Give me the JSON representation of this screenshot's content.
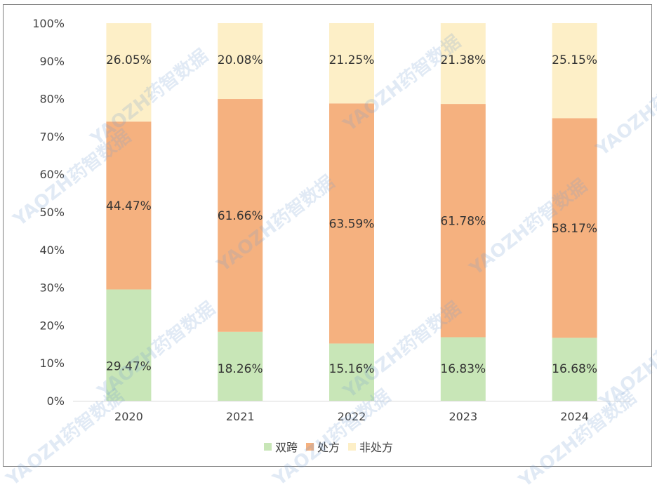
{
  "chart_data": {
    "type": "bar",
    "stacked": true,
    "categories": [
      "2020",
      "2021",
      "2022",
      "2023",
      "2024"
    ],
    "series": [
      {
        "name": "双跨",
        "color": "#c8e6b7",
        "values": [
          29.47,
          18.26,
          15.16,
          16.83,
          16.68
        ],
        "labels": [
          "29.47%",
          "18.26%",
          "15.16%",
          "16.83%",
          "16.68%"
        ]
      },
      {
        "name": "处方",
        "color": "#f5b17f",
        "values": [
          44.47,
          61.66,
          63.59,
          61.78,
          58.17
        ],
        "labels": [
          "44.47%",
          "61.66%",
          "63.59%",
          "61.78%",
          "58.17%"
        ]
      },
      {
        "name": "非处方",
        "color": "#fdefc7",
        "values": [
          26.05,
          20.08,
          21.25,
          21.38,
          25.15
        ],
        "labels": [
          "26.05%",
          "20.08%",
          "21.25%",
          "21.38%",
          "25.15%"
        ]
      }
    ],
    "y_ticks": [
      "0%",
      "10%",
      "20%",
      "30%",
      "40%",
      "50%",
      "60%",
      "70%",
      "80%",
      "90%",
      "100%"
    ],
    "ylim": [
      0,
      100
    ],
    "grid": false,
    "legend_position": "bottom"
  },
  "watermark": {
    "text": "YAOZH药智数据"
  }
}
